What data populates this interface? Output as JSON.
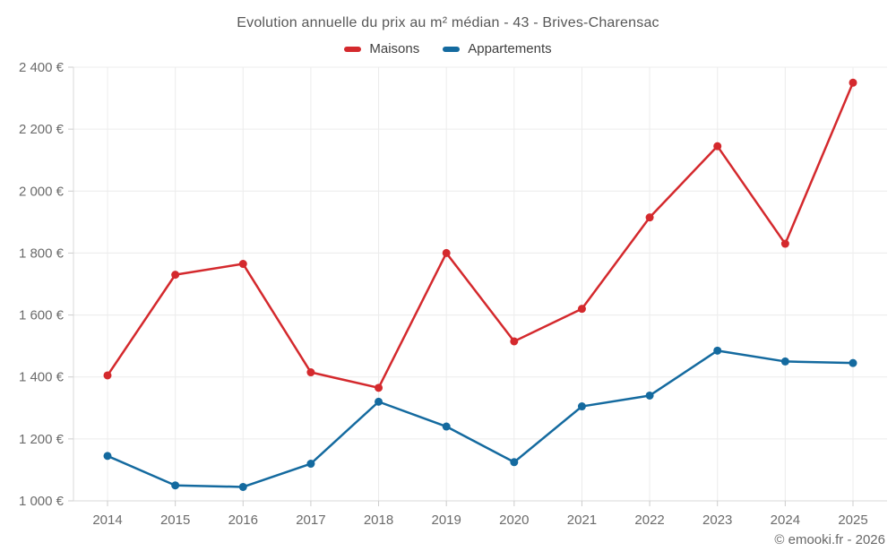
{
  "header": {
    "title": "Evolution annuelle du prix au m² médian - 43 - Brives-Charensac"
  },
  "legend": {
    "items": [
      {
        "label": "Maisons",
        "color": "#d4292d"
      },
      {
        "label": "Appartements",
        "color": "#146a9f"
      }
    ]
  },
  "footer": {
    "attribution": "© emooki.fr - 2026"
  },
  "colors": {
    "background": "#ffffff",
    "grid": "#ececec",
    "axis": "#d8d8d8",
    "tick": "#cccccc",
    "tick_label": "#6b6b6b",
    "title_text": "#575757",
    "legend_text": "#404040",
    "footer_text": "#686868"
  },
  "chart_data": {
    "type": "line",
    "title": "Evolution annuelle du prix au m² médian - 43 - Brives-Charensac",
    "xlabel": "",
    "ylabel": "",
    "categories": [
      "2014",
      "2015",
      "2016",
      "2017",
      "2018",
      "2019",
      "2020",
      "2021",
      "2022",
      "2023",
      "2024",
      "2025"
    ],
    "series": [
      {
        "name": "Maisons",
        "color": "#d4292d",
        "values": [
          1405,
          1730,
          1765,
          1415,
          1365,
          1800,
          1515,
          1620,
          1915,
          2145,
          1830,
          2350
        ]
      },
      {
        "name": "Appartements",
        "color": "#146a9f",
        "values": [
          1145,
          1050,
          1045,
          1120,
          1320,
          1240,
          1125,
          1305,
          1340,
          1485,
          1450,
          1445
        ]
      }
    ],
    "ylim": [
      1000,
      2400
    ],
    "ytick_step": 200,
    "ytick_labels": [
      "1 000 €",
      "1 200 €",
      "1 400 €",
      "1 600 €",
      "1 800 €",
      "2 000 €",
      "2 200 €",
      "2 400 €"
    ],
    "grid": true,
    "legend_position": "top"
  }
}
